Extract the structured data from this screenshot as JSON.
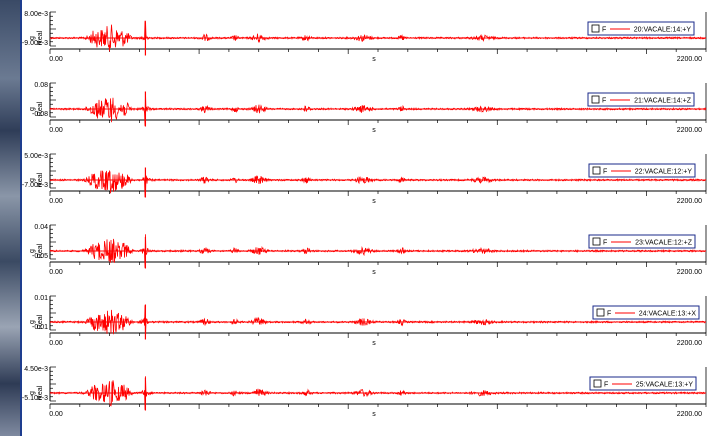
{
  "colors": {
    "trace": "#ff0000",
    "legend_border": "#1a2a8a",
    "frame_border": "#1e3d8f",
    "axis": "#000000"
  },
  "chart_data": [
    {
      "type": "line",
      "ylabel": "g\nReal",
      "xlabel": "s",
      "xlim": [
        0.0,
        2200.0
      ],
      "x_tick_labels": [
        "0.00",
        "s",
        "2200.00"
      ],
      "y_tick_labels": [
        "8.00e-3",
        "-9.00e-3"
      ],
      "ylim": [
        -0.009,
        0.008
      ],
      "legend": {
        "checkbox": "F",
        "label": "20:VACALE:14:+Y",
        "placement": "top-right"
      },
      "series": [
        {
          "name": "20:VACALE:14:+Y",
          "peak": 0.008,
          "trough": -0.009
        }
      ]
    },
    {
      "type": "line",
      "ylabel": "g\nReal",
      "xlabel": "s",
      "xlim": [
        0.0,
        2200.0
      ],
      "x_tick_labels": [
        "0.00",
        "s",
        "2200.00"
      ],
      "y_tick_labels": [
        "0.08",
        "-0.08"
      ],
      "ylim": [
        -0.08,
        0.08
      ],
      "legend": {
        "checkbox": "F",
        "label": "21:VACALE:14:+Z",
        "placement": "top-right"
      },
      "series": [
        {
          "name": "21:VACALE:14:+Z",
          "peak": 0.08,
          "trough": -0.08
        }
      ]
    },
    {
      "type": "line",
      "ylabel": "g\nReal",
      "xlabel": "s",
      "xlim": [
        0.0,
        2200.0
      ],
      "x_tick_labels": [
        "0.00",
        "s",
        "2200.00"
      ],
      "y_tick_labels": [
        "5.00e-3",
        "-7.00e-3"
      ],
      "ylim": [
        -0.007,
        0.005
      ],
      "legend": {
        "checkbox": "F",
        "label": "22:VACALE:12:+Y",
        "placement": "top-right"
      },
      "series": [
        {
          "name": "22:VACALE:12:+Y",
          "peak": 0.005,
          "trough": -0.007
        }
      ]
    },
    {
      "type": "line",
      "ylabel": "g\nReal",
      "xlabel": "s",
      "xlim": [
        0.0,
        2200.0
      ],
      "x_tick_labels": [
        "0.00",
        "s",
        "2200.00"
      ],
      "y_tick_labels": [
        "0.04",
        "-0.05"
      ],
      "ylim": [
        -0.05,
        0.04
      ],
      "legend": {
        "checkbox": "F",
        "label": "23:VACALE:12:+Z",
        "placement": "top-right"
      },
      "series": [
        {
          "name": "23:VACALE:12:+Z",
          "peak": 0.04,
          "trough": -0.05
        }
      ]
    },
    {
      "type": "line",
      "ylabel": "g\nReal",
      "xlabel": "s",
      "xlim": [
        0.0,
        2200.0
      ],
      "x_tick_labels": [
        "0.00",
        "s",
        "2200.00"
      ],
      "y_tick_labels": [
        "0.01",
        "-0.01"
      ],
      "ylim": [
        -0.01,
        0.01
      ],
      "legend": {
        "checkbox": "F",
        "label": "24:VACALE:13:+X",
        "placement": "top-right"
      },
      "series": [
        {
          "name": "24:VACALE:13:+X",
          "peak": 0.01,
          "trough": -0.01
        }
      ]
    },
    {
      "type": "line",
      "ylabel": "g\nReal",
      "xlabel": "s",
      "xlim": [
        0.0,
        2200.0
      ],
      "x_tick_labels": [
        "0.00",
        "s",
        "2200.00"
      ],
      "y_tick_labels": [
        "4.50e-3",
        "-5.10e-3"
      ],
      "ylim": [
        -0.0051,
        0.0045
      ],
      "legend": {
        "checkbox": "F",
        "label": "25:VACALE:13:+Y",
        "placement": "top-right"
      },
      "series": [
        {
          "name": "25:VACALE:13:+Y",
          "peak": 0.0045,
          "trough": -0.0051
        }
      ]
    }
  ]
}
